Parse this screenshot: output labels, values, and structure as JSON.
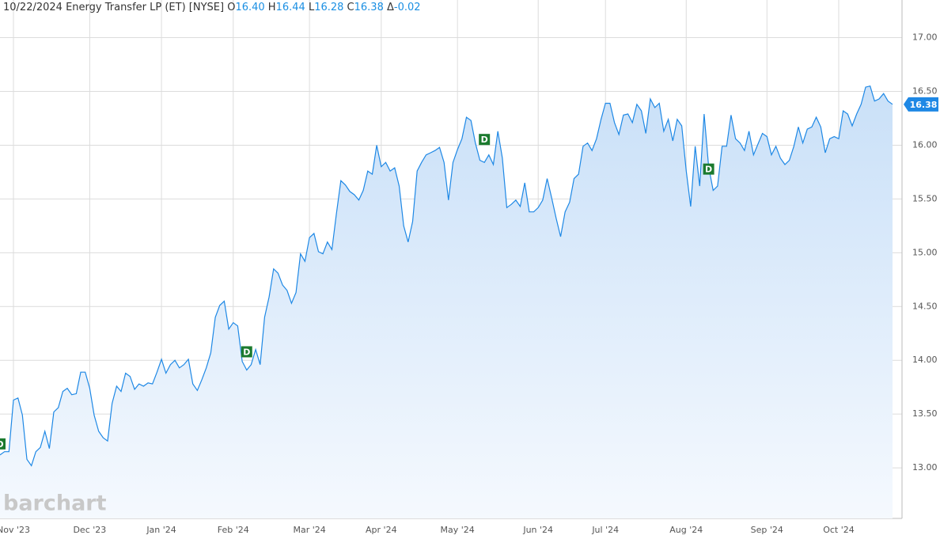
{
  "chart_data": {
    "type": "area",
    "date": "10/22/2024",
    "title": "Energy Transfer LP (ET) [NYSE]",
    "quote": [
      {
        "name": "O",
        "value": 16.4,
        "label": "16.40"
      },
      {
        "name": "H",
        "value": 16.44,
        "label": "16.44"
      },
      {
        "name": "L",
        "value": 16.28,
        "label": "16.28"
      },
      {
        "name": "C",
        "value": 16.38,
        "label": "16.38"
      },
      {
        "name": "Δ",
        "value": -0.02
      }
    ],
    "watermark": "barchart",
    "marker_label": "D",
    "color": "#1e88e5",
    "grid": true,
    "categories": [
      null,
      null,
      null,
      "Nov '23",
      null,
      null,
      null,
      null,
      null,
      null,
      null,
      null,
      null,
      null,
      null,
      null,
      null,
      null,
      null,
      null,
      "Dec '23",
      null,
      null,
      null,
      null,
      null,
      null,
      null,
      null,
      null,
      null,
      null,
      null,
      null,
      null,
      null,
      "Jan '24",
      null,
      null,
      null,
      null,
      null,
      null,
      null,
      null,
      null,
      null,
      null,
      null,
      null,
      null,
      null,
      "Feb '24",
      null,
      null,
      null,
      null,
      null,
      null,
      null,
      null,
      null,
      null,
      null,
      null,
      null,
      null,
      null,
      null,
      "Mar '24",
      null,
      null,
      null,
      null,
      null,
      null,
      null,
      null,
      null,
      null,
      null,
      null,
      null,
      null,
      null,
      "Apr '24",
      null,
      null,
      null,
      null,
      null,
      null,
      null,
      null,
      null,
      null,
      null,
      null,
      null,
      null,
      null,
      null,
      "May '24",
      null,
      null,
      null,
      null,
      null,
      null,
      null,
      null,
      null,
      null,
      null,
      null,
      null,
      null,
      null,
      null,
      null,
      "Jun '24",
      null,
      null,
      null,
      null,
      null,
      null,
      null,
      null,
      null,
      null,
      null,
      null,
      null,
      null,
      "Jul '24",
      null,
      null,
      null,
      null,
      null,
      null,
      null,
      null,
      null,
      null,
      null,
      null,
      null,
      null,
      null,
      null,
      null,
      "Aug '24",
      null,
      null,
      null,
      null,
      null,
      null,
      null,
      null,
      null,
      null,
      null,
      null,
      null,
      null,
      null,
      null,
      null,
      "Sep '24",
      null,
      null,
      null,
      null,
      null,
      null,
      null,
      null,
      null,
      null,
      null,
      null,
      null,
      null,
      null,
      "Oct '24",
      null,
      null,
      null,
      null,
      null,
      null,
      null,
      null,
      null,
      null,
      null,
      null
    ],
    "values": [
      13.12,
      13.15,
      13.15,
      13.63,
      13.65,
      13.49,
      13.08,
      13.02,
      13.15,
      13.19,
      13.34,
      13.18,
      13.52,
      13.56,
      13.71,
      13.74,
      13.68,
      13.69,
      13.89,
      13.89,
      13.74,
      13.49,
      13.34,
      13.28,
      13.25,
      13.6,
      13.76,
      13.71,
      13.88,
      13.85,
      13.73,
      13.78,
      13.76,
      13.79,
      13.78,
      13.89,
      14.01,
      13.88,
      13.96,
      14.0,
      13.93,
      13.96,
      14.01,
      13.78,
      13.72,
      13.82,
      13.93,
      14.07,
      14.4,
      14.51,
      14.55,
      14.29,
      14.35,
      14.32,
      13.99,
      13.91,
      13.96,
      14.1,
      13.96,
      14.4,
      14.59,
      14.85,
      14.81,
      14.7,
      14.65,
      14.53,
      14.63,
      14.99,
      14.92,
      15.14,
      15.18,
      15.01,
      14.99,
      15.1,
      15.03,
      15.36,
      15.67,
      15.63,
      15.57,
      15.54,
      15.49,
      15.58,
      15.76,
      15.73,
      16.0,
      15.8,
      15.84,
      15.76,
      15.79,
      15.62,
      15.25,
      15.1,
      15.29,
      15.76,
      15.84,
      15.91,
      15.93,
      15.95,
      15.98,
      15.84,
      15.49,
      15.84,
      15.96,
      16.06,
      16.26,
      16.23,
      16.02,
      15.86,
      15.84,
      15.91,
      15.82,
      16.13,
      15.88,
      15.42,
      15.45,
      15.49,
      15.43,
      15.65,
      15.38,
      15.38,
      15.42,
      15.49,
      15.69,
      15.51,
      15.32,
      15.15,
      15.38,
      15.47,
      15.69,
      15.73,
      15.99,
      16.02,
      15.95,
      16.06,
      16.24,
      16.39,
      16.39,
      16.21,
      16.1,
      16.28,
      16.29,
      16.21,
      16.38,
      16.32,
      16.11,
      16.43,
      16.35,
      16.39,
      16.13,
      16.24,
      16.04,
      16.24,
      16.18,
      15.76,
      15.43,
      15.99,
      15.62,
      16.29,
      15.8,
      15.58,
      15.62,
      15.99,
      15.99,
      16.28,
      16.06,
      16.02,
      15.95,
      16.13,
      15.91,
      16.01,
      16.11,
      16.08,
      15.91,
      15.99,
      15.88,
      15.82,
      15.86,
      15.99,
      16.17,
      16.02,
      16.15,
      16.17,
      16.26,
      16.17,
      15.93,
      16.06,
      16.08,
      16.06,
      16.32,
      16.29,
      16.18,
      16.29,
      16.38,
      16.54,
      16.55,
      16.41,
      16.43,
      16.48,
      16.41,
      16.38
    ],
    "ylim": [
      12.53,
      17.35
    ],
    "yticks": [
      {
        "value": 13,
        "label": "13.00"
      },
      {
        "value": 13.5,
        "label": "13.50"
      },
      {
        "value": 14,
        "label": "14.00"
      },
      {
        "value": 14.5,
        "label": "14.50"
      },
      {
        "value": 15,
        "label": "15.00"
      },
      {
        "value": 15.5,
        "label": "15.50"
      },
      {
        "value": 16,
        "label": "16.00"
      },
      {
        "value": 16.5,
        "label": "16.50"
      },
      {
        "value": 17,
        "label": "17.00"
      }
    ]
  }
}
